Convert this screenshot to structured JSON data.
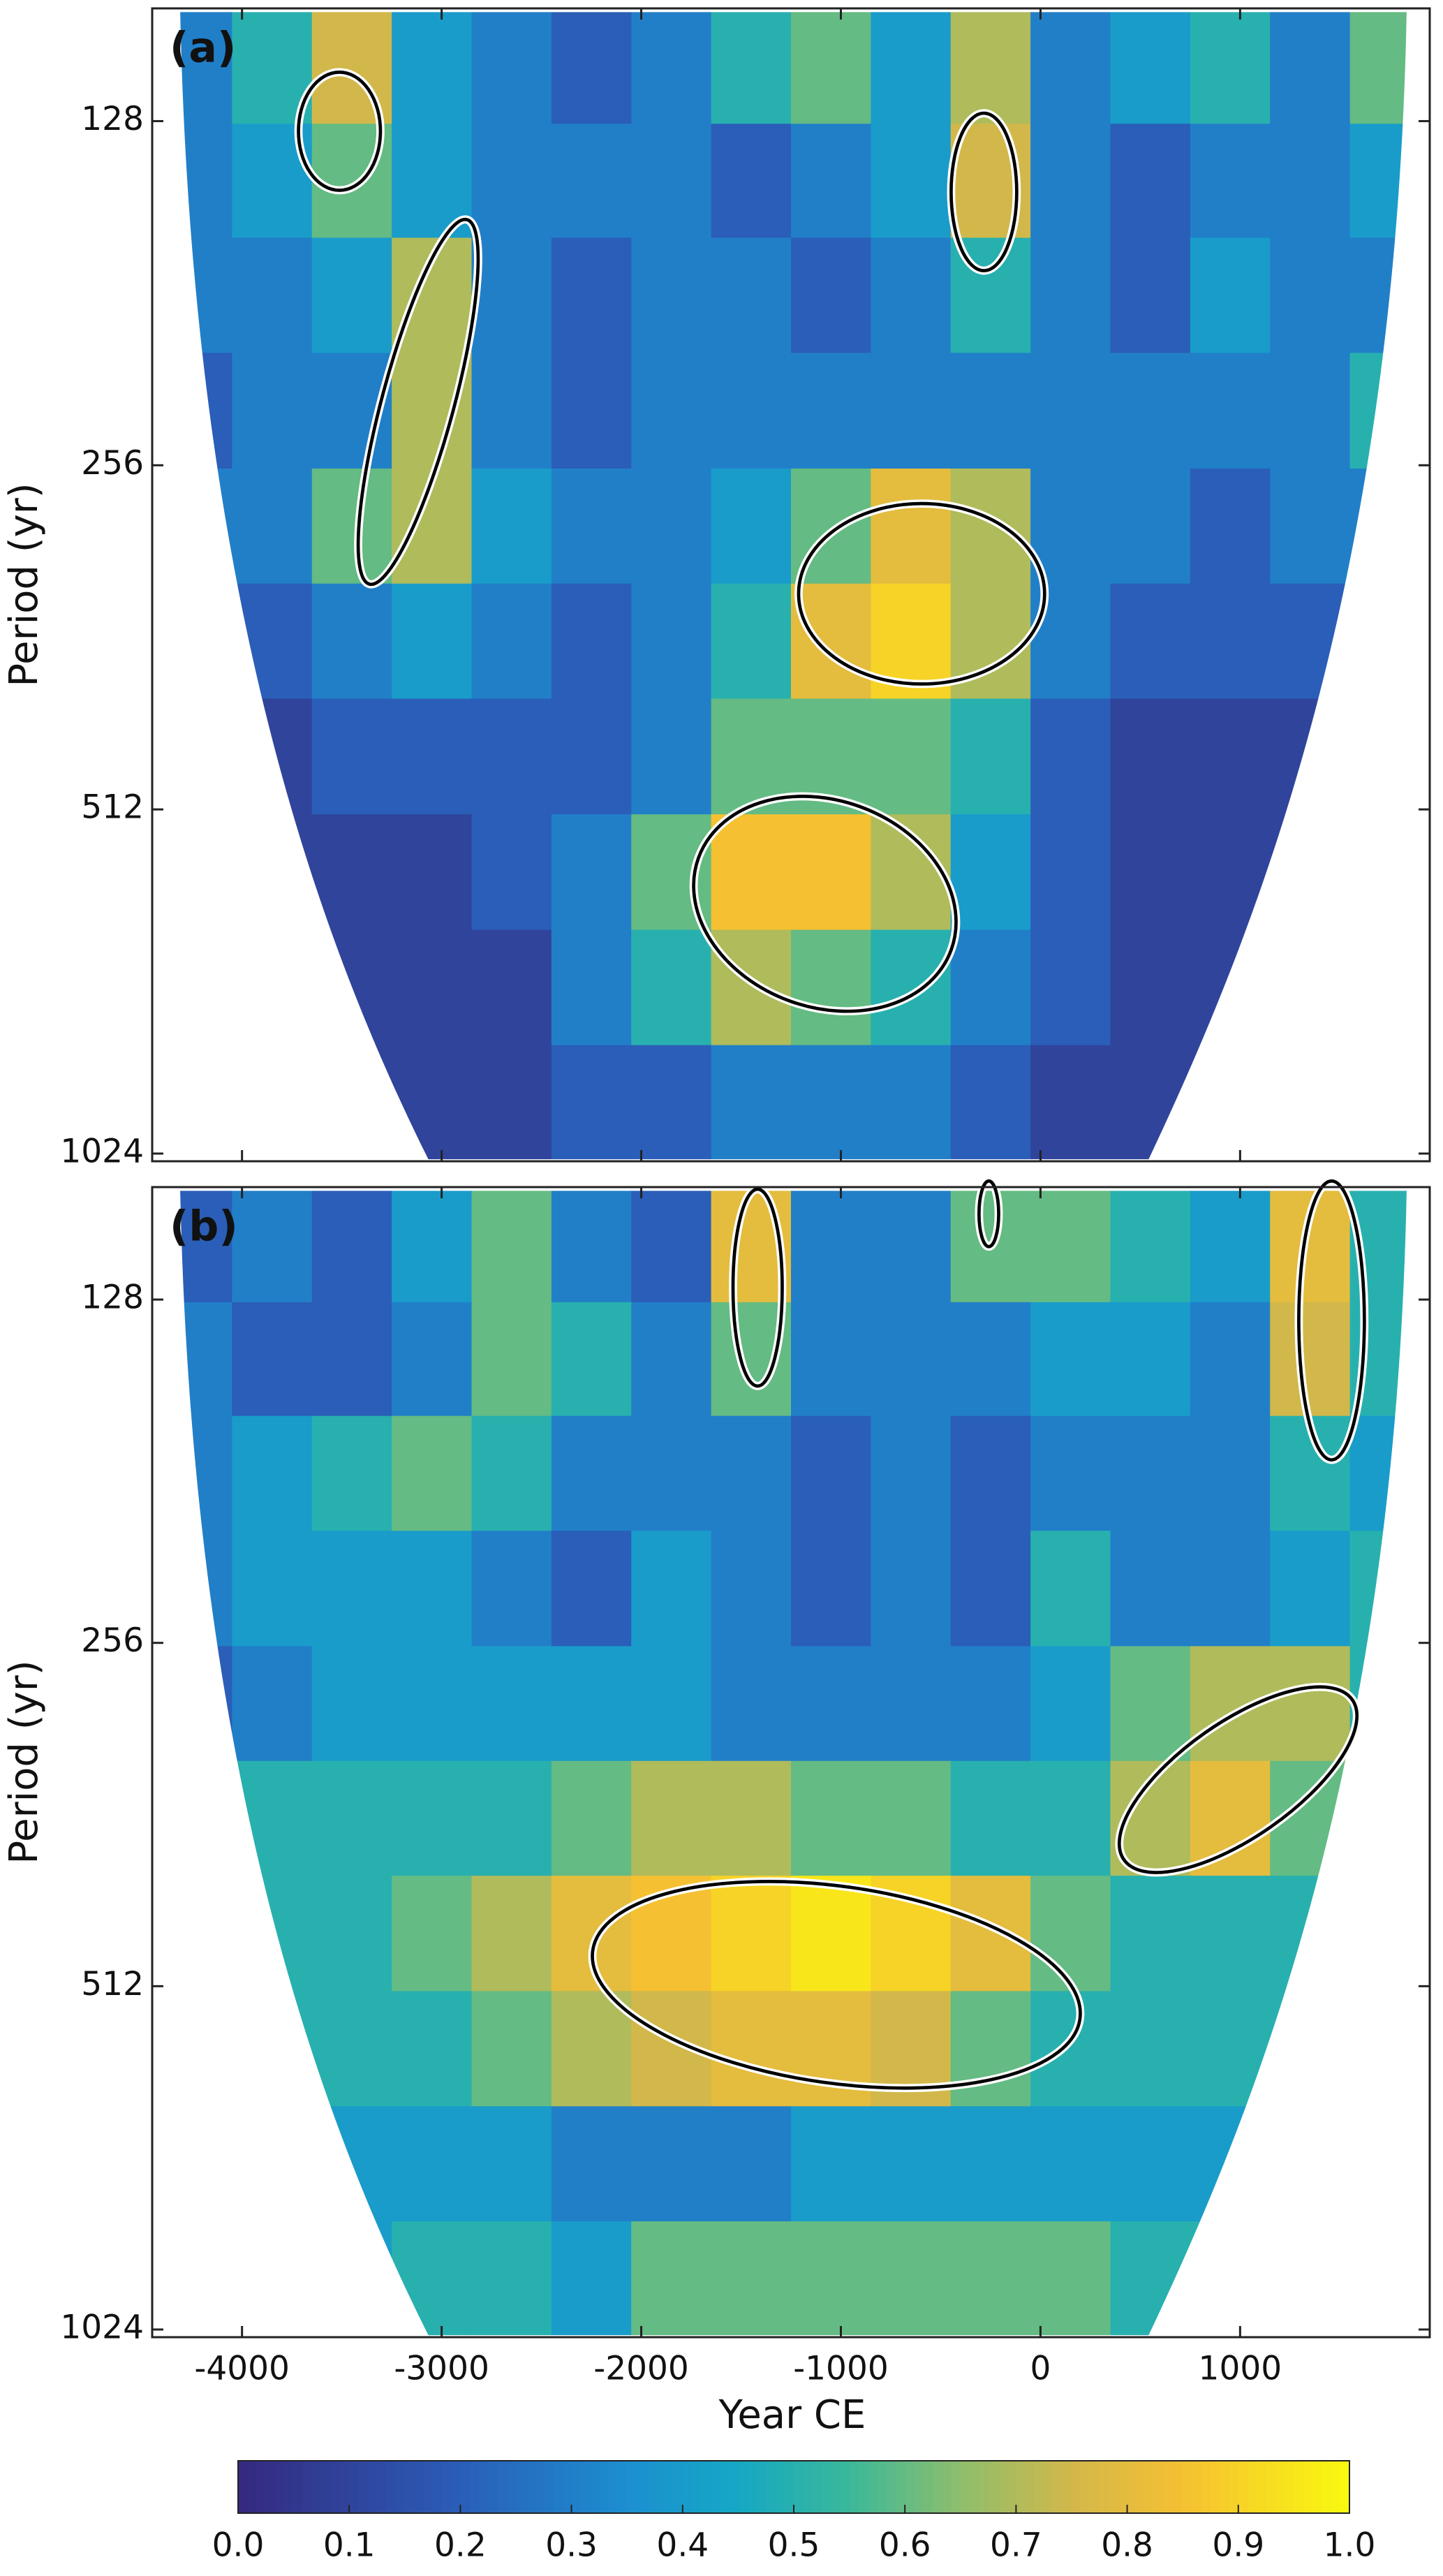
{
  "chart_data": [
    {
      "type": "heatmap",
      "title": "(a)",
      "ylabel": "Period (yr)",
      "log": true,
      "x": [
        -4250,
        -3850,
        -3450,
        -3050,
        -2650,
        -2250,
        -1850,
        -1450,
        -1050,
        -650,
        -250,
        150,
        550,
        950,
        1350,
        1750
      ],
      "y": [
        115,
        144,
        182,
        229,
        290,
        364,
        461,
        580,
        734,
        923
      ],
      "values": [
        [
          0.3,
          0.5,
          0.75,
          0.4,
          0.3,
          0.2,
          0.3,
          0.5,
          0.6,
          0.4,
          0.7,
          0.3,
          0.4,
          0.5,
          0.3,
          0.6
        ],
        [
          0.3,
          0.4,
          0.6,
          0.4,
          0.3,
          0.3,
          0.3,
          0.2,
          0.3,
          0.4,
          0.75,
          0.3,
          0.2,
          0.3,
          0.3,
          0.4
        ],
        [
          0.3,
          0.3,
          0.4,
          0.7,
          0.3,
          0.2,
          0.3,
          0.3,
          0.2,
          0.3,
          0.5,
          0.3,
          0.2,
          0.4,
          0.3,
          0.3
        ],
        [
          0.2,
          0.3,
          0.3,
          0.7,
          0.3,
          0.2,
          0.3,
          0.3,
          0.3,
          0.3,
          0.3,
          0.3,
          0.3,
          0.3,
          0.3,
          0.5
        ],
        [
          0.3,
          0.3,
          0.6,
          0.7,
          0.4,
          0.3,
          0.3,
          0.4,
          0.6,
          0.8,
          0.7,
          0.3,
          0.3,
          0.2,
          0.3,
          0.3
        ],
        [
          0.2,
          0.2,
          0.3,
          0.4,
          0.3,
          0.2,
          0.3,
          0.5,
          0.8,
          0.9,
          0.7,
          0.3,
          0.2,
          0.2,
          0.2,
          0.3
        ],
        [
          0.1,
          0.1,
          0.2,
          0.2,
          0.2,
          0.2,
          0.3,
          0.6,
          0.6,
          0.6,
          0.5,
          0.2,
          0.1,
          0.1,
          0.1,
          0.2
        ],
        [
          0.1,
          0.1,
          0.1,
          0.1,
          0.2,
          0.3,
          0.6,
          0.85,
          0.85,
          0.7,
          0.4,
          0.2,
          0.1,
          0.1,
          0.1,
          0.2
        ],
        [
          0.1,
          0.1,
          0.1,
          0.1,
          0.1,
          0.3,
          0.5,
          0.7,
          0.6,
          0.5,
          0.3,
          0.2,
          0.1,
          0.1,
          0.1,
          0.1
        ],
        [
          0.1,
          0.1,
          0.1,
          0.1,
          0.1,
          0.2,
          0.2,
          0.3,
          0.3,
          0.3,
          0.2,
          0.1,
          0.1,
          0.1,
          0.1,
          0.1
        ]
      ],
      "xlim": [
        -4450,
        1950
      ],
      "ylim": [
        102,
        1040
      ],
      "xticks": [
        -4000,
        -3000,
        -2000,
        -1000,
        0,
        1000
      ],
      "yticks": [
        128,
        256,
        512,
        1024
      ]
    },
    {
      "type": "heatmap",
      "title": "(b)",
      "ylabel": "Period (yr)",
      "xlabel": "Year CE",
      "log": true,
      "x": [
        -4250,
        -3850,
        -3450,
        -3050,
        -2650,
        -2250,
        -1850,
        -1450,
        -1050,
        -650,
        -250,
        150,
        550,
        950,
        1350,
        1750
      ],
      "y": [
        115,
        144,
        182,
        229,
        290,
        364,
        461,
        580,
        734,
        923
      ],
      "values": [
        [
          0.2,
          0.3,
          0.2,
          0.4,
          0.6,
          0.3,
          0.2,
          0.8,
          0.3,
          0.3,
          0.6,
          0.6,
          0.5,
          0.4,
          0.8,
          0.5
        ],
        [
          0.3,
          0.2,
          0.2,
          0.3,
          0.6,
          0.5,
          0.3,
          0.6,
          0.3,
          0.3,
          0.3,
          0.4,
          0.4,
          0.3,
          0.75,
          0.5
        ],
        [
          0.3,
          0.4,
          0.5,
          0.6,
          0.5,
          0.3,
          0.3,
          0.3,
          0.2,
          0.3,
          0.2,
          0.3,
          0.3,
          0.3,
          0.5,
          0.4
        ],
        [
          0.3,
          0.4,
          0.4,
          0.4,
          0.3,
          0.2,
          0.4,
          0.3,
          0.2,
          0.3,
          0.2,
          0.5,
          0.3,
          0.3,
          0.4,
          0.5
        ],
        [
          0.2,
          0.3,
          0.4,
          0.4,
          0.4,
          0.4,
          0.4,
          0.3,
          0.3,
          0.3,
          0.3,
          0.4,
          0.6,
          0.7,
          0.7,
          0.5
        ],
        [
          0.5,
          0.5,
          0.5,
          0.5,
          0.5,
          0.6,
          0.7,
          0.7,
          0.6,
          0.6,
          0.5,
          0.5,
          0.7,
          0.8,
          0.6,
          0.5
        ],
        [
          0.5,
          0.5,
          0.5,
          0.6,
          0.7,
          0.8,
          0.85,
          0.9,
          0.95,
          0.9,
          0.8,
          0.6,
          0.5,
          0.5,
          0.5,
          0.5
        ],
        [
          0.5,
          0.5,
          0.5,
          0.5,
          0.6,
          0.7,
          0.75,
          0.8,
          0.8,
          0.75,
          0.6,
          0.5,
          0.5,
          0.5,
          0.5,
          0.5
        ],
        [
          0.4,
          0.4,
          0.4,
          0.4,
          0.4,
          0.3,
          0.3,
          0.3,
          0.4,
          0.4,
          0.4,
          0.4,
          0.4,
          0.4,
          0.4,
          0.4
        ],
        [
          0.4,
          0.4,
          0.4,
          0.5,
          0.5,
          0.4,
          0.6,
          0.6,
          0.6,
          0.6,
          0.6,
          0.6,
          0.5,
          0.5,
          0.5,
          0.5
        ]
      ],
      "xlim": [
        -4450,
        1950
      ],
      "ylim": [
        102,
        1040
      ],
      "xticks": [
        -4000,
        -3000,
        -2000,
        -1000,
        0,
        1000
      ],
      "yticks": [
        128,
        256,
        512,
        1024
      ]
    }
  ],
  "colorbar": {
    "lim": [
      0,
      1
    ],
    "ticks": [
      {
        "value": 0,
        "label": "0.0"
      },
      {
        "value": 0.1,
        "label": "0.1"
      },
      {
        "value": 0.2,
        "label": "0.2"
      },
      {
        "value": 0.3,
        "label": "0.3"
      },
      {
        "value": 0.4,
        "label": "0.4"
      },
      {
        "value": 0.5,
        "label": "0.5"
      },
      {
        "value": 0.6,
        "label": "0.6"
      },
      {
        "value": 0.7,
        "label": "0.7"
      },
      {
        "value": 0.8,
        "label": "0.8"
      },
      {
        "value": 0.9,
        "label": "0.9"
      },
      {
        "value": 1,
        "label": "1.0"
      }
    ]
  }
}
